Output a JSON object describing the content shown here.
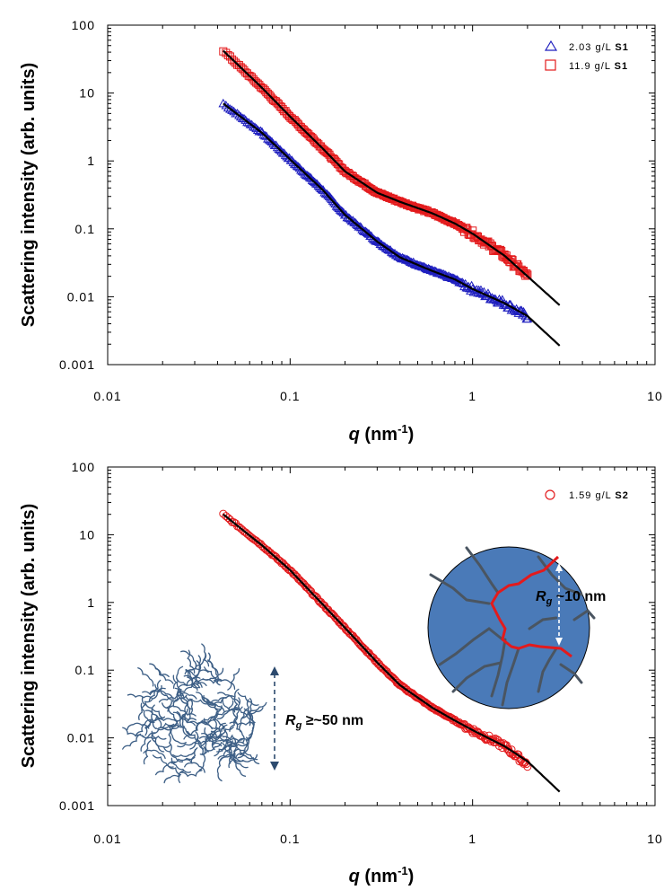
{
  "chart_data": [
    {
      "type": "scatter",
      "xscale": "log",
      "yscale": "log",
      "xlim": [
        0.01,
        10
      ],
      "ylim": [
        0.001,
        100
      ],
      "xticks": [
        "0.01",
        "0.1",
        "1",
        "10"
      ],
      "yticks": [
        "0.001",
        "0.01",
        "0.1",
        "1",
        "10",
        "100"
      ],
      "ylabel": "Scattering intensity (arb. units)",
      "xlabel": {
        "q": "q",
        "rest": " (nm",
        "sup": "-1",
        "close": ")"
      },
      "legend_position": "top-right",
      "series": [
        {
          "name_value": "2.03 g/L",
          "name_sample": "S1",
          "marker": "triangle",
          "color": "#1f1fbf",
          "x_range": [
            0.043,
            2.0
          ],
          "anchors": [
            [
              0.043,
              7.0
            ],
            [
              0.07,
              2.6
            ],
            [
              0.1,
              1.05
            ],
            [
              0.15,
              0.38
            ],
            [
              0.2,
              0.16
            ],
            [
              0.3,
              0.065
            ],
            [
              0.4,
              0.038
            ],
            [
              0.6,
              0.024
            ],
            [
              0.8,
              0.018
            ],
            [
              1.0,
              0.013
            ],
            [
              1.5,
              0.008
            ],
            [
              2.0,
              0.005
            ]
          ]
        },
        {
          "name_value": "11.9 g/L",
          "name_sample": "S1",
          "marker": "square",
          "color": "#e31a1c",
          "x_range": [
            0.043,
            2.0
          ],
          "anchors": [
            [
              0.043,
              42
            ],
            [
              0.07,
              12
            ],
            [
              0.1,
              4.5
            ],
            [
              0.15,
              1.55
            ],
            [
              0.2,
              0.7
            ],
            [
              0.3,
              0.34
            ],
            [
              0.4,
              0.25
            ],
            [
              0.6,
              0.17
            ],
            [
              0.8,
              0.12
            ],
            [
              1.0,
              0.085
            ],
            [
              1.5,
              0.04
            ],
            [
              2.0,
              0.02
            ]
          ]
        }
      ],
      "fits": [
        {
          "color": "#000000",
          "anchors": [
            [
              0.043,
              7.0
            ],
            [
              0.07,
              2.6
            ],
            [
              0.1,
              1.05
            ],
            [
              0.15,
              0.38
            ],
            [
              0.2,
              0.16
            ],
            [
              0.3,
              0.065
            ],
            [
              0.4,
              0.038
            ],
            [
              0.6,
              0.024
            ],
            [
              0.8,
              0.018
            ],
            [
              1.0,
              0.013
            ],
            [
              1.5,
              0.008
            ],
            [
              2.0,
              0.0052
            ],
            [
              3.0,
              0.0019
            ]
          ]
        },
        {
          "color": "#000000",
          "anchors": [
            [
              0.043,
              42
            ],
            [
              0.07,
              12
            ],
            [
              0.1,
              4.5
            ],
            [
              0.15,
              1.55
            ],
            [
              0.2,
              0.7
            ],
            [
              0.3,
              0.34
            ],
            [
              0.4,
              0.25
            ],
            [
              0.6,
              0.17
            ],
            [
              0.8,
              0.12
            ],
            [
              1.0,
              0.085
            ],
            [
              1.5,
              0.04
            ],
            [
              2.0,
              0.02
            ],
            [
              3.0,
              0.0075
            ]
          ]
        }
      ]
    },
    {
      "type": "scatter",
      "xscale": "log",
      "yscale": "log",
      "xlim": [
        0.01,
        10
      ],
      "ylim": [
        0.001,
        100
      ],
      "xticks": [
        "0.01",
        "0.1",
        "1",
        "10"
      ],
      "yticks": [
        "0.001",
        "0.01",
        "0.1",
        "1",
        "10",
        "100"
      ],
      "ylabel": "Scattering intensity (arb. units)",
      "xlabel": {
        "q": "q",
        "rest": " (nm",
        "sup": "-1",
        "close": ")"
      },
      "legend_position": "top-right",
      "series": [
        {
          "name_value": "1.59 g/L",
          "name_sample": "S2",
          "marker": "circle",
          "color": "#e31a1c",
          "x_range": [
            0.043,
            2.0
          ],
          "anchors": [
            [
              0.043,
              20
            ],
            [
              0.07,
              7
            ],
            [
              0.1,
              3.0
            ],
            [
              0.15,
              0.95
            ],
            [
              0.2,
              0.42
            ],
            [
              0.3,
              0.13
            ],
            [
              0.4,
              0.06
            ],
            [
              0.6,
              0.028
            ],
            [
              0.8,
              0.018
            ],
            [
              1.0,
              0.013
            ],
            [
              1.5,
              0.0075
            ],
            [
              2.0,
              0.004
            ]
          ]
        }
      ],
      "fits": [
        {
          "color": "#000000",
          "anchors": [
            [
              0.043,
              20
            ],
            [
              0.07,
              7
            ],
            [
              0.1,
              3.0
            ],
            [
              0.15,
              0.95
            ],
            [
              0.2,
              0.42
            ],
            [
              0.3,
              0.13
            ],
            [
              0.4,
              0.06
            ],
            [
              0.6,
              0.028
            ],
            [
              0.8,
              0.018
            ],
            [
              1.0,
              0.013
            ],
            [
              1.5,
              0.0075
            ],
            [
              2.0,
              0.0045
            ],
            [
              3.0,
              0.0016
            ]
          ]
        }
      ],
      "annotations": {
        "large": {
          "sym": "R",
          "sub": "g",
          "text": " ≥~50 nm"
        },
        "small": {
          "sym": "R",
          "sub": "g",
          "text": " ~10 nm"
        }
      }
    }
  ]
}
